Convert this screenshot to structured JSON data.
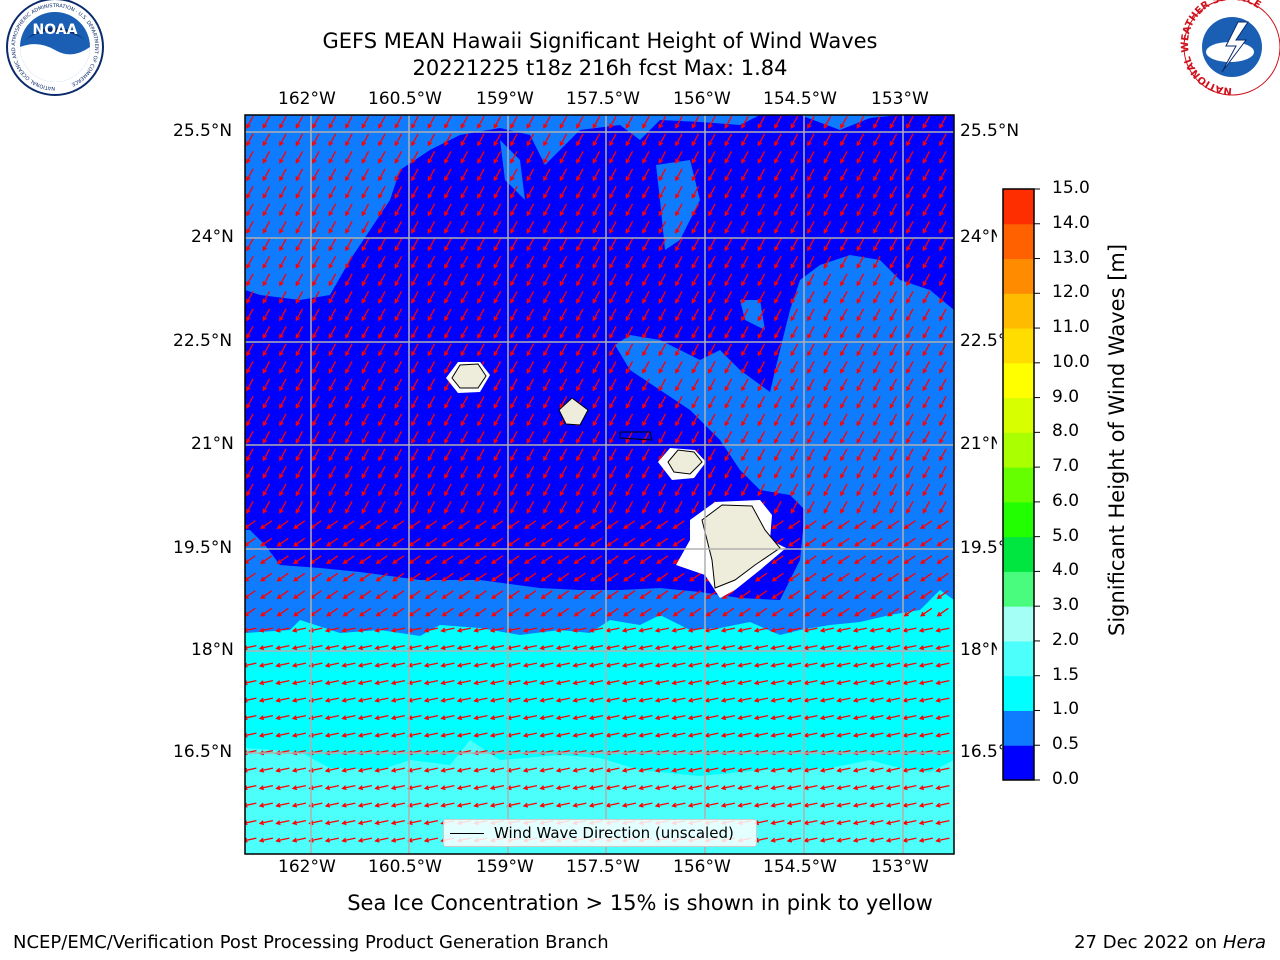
{
  "title": {
    "line1": "GEFS MEAN Hawaii Significant Height of Wind Waves",
    "line2": "20221225 t18z 216h fcst   Max: 1.84"
  },
  "logos": {
    "left": "NOAA",
    "left_ring": "NATIONAL OCEANIC AND ATMOSPHERIC ADMINISTRATION · U.S. DEPARTMENT OF COMMERCE",
    "right_ring": "NATIONAL WEATHER SERVICE"
  },
  "map": {
    "lon_ticks": [
      "162°W",
      "160.5°W",
      "159°W",
      "157.5°W",
      "156°W",
      "154.5°W",
      "153°W"
    ],
    "lat_ticks": [
      "25.5°N",
      "24°N",
      "22.5°N",
      "21°N",
      "19.5°N",
      "18°N",
      "16.5°N"
    ],
    "legend_label": "Wind Wave Direction (unscaled)",
    "colors": {
      "land": "#eeecdb",
      "grid": "#b0b0b0",
      "arrow": "#ff0000",
      "band_0_0_5": "#0000ff",
      "band_0_5_1_0": "#0f7bff",
      "band_1_0_1_5": "#00ffff",
      "band_1_5_2_0": "#4cfffa"
    }
  },
  "colorbar": {
    "label": "Significant Height of Wind Waves [m]",
    "ticks": [
      "0.0",
      "0.5",
      "1.0",
      "1.5",
      "2.0",
      "3.0",
      "4.0",
      "5.0",
      "6.0",
      "7.0",
      "8.0",
      "9.0",
      "10.0",
      "11.0",
      "12.0",
      "13.0",
      "14.0",
      "15.0"
    ],
    "colors": [
      "#0000ff",
      "#0f7bff",
      "#00ffff",
      "#4cfffa",
      "#a4fff7",
      "#4afc7d",
      "#00e640",
      "#22ff00",
      "#66ff00",
      "#aaff00",
      "#d8ff00",
      "#ffff00",
      "#ffdd00",
      "#ffbb00",
      "#ff8c00",
      "#ff6000",
      "#ff2e00"
    ]
  },
  "caption": "Sea Ice Concentration > 15% is shown in pink to yellow",
  "footer": {
    "left": "NCEP/EMC/Verification Post Processing Product Generation Branch",
    "right_date": "27 Dec 2022 on",
    "right_host": "Hera"
  }
}
